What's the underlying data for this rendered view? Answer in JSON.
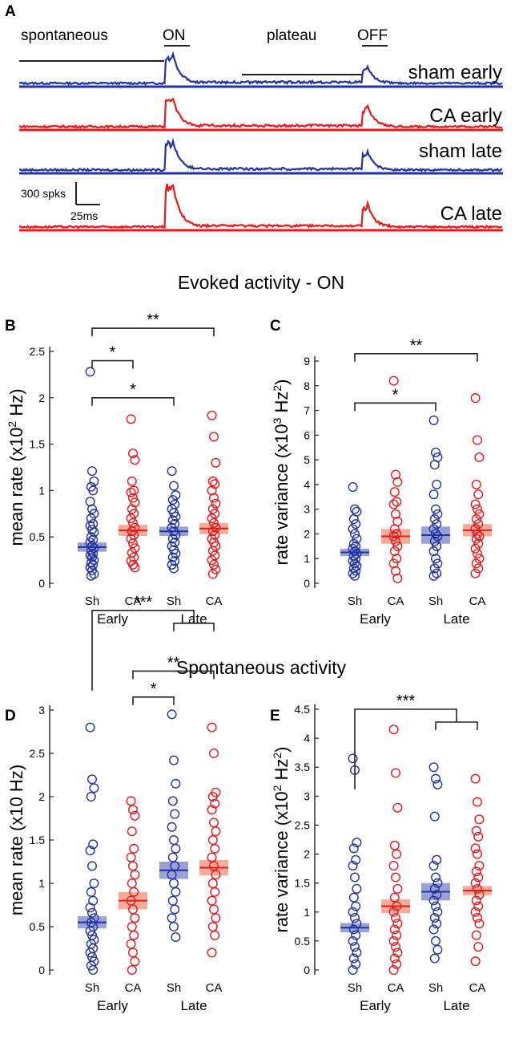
{
  "figure": {
    "panel_a": {
      "letter": "A",
      "period_labels": {
        "spontaneous": "spontaneous",
        "on": "ON",
        "plateau": "plateau",
        "off": "OFF"
      },
      "scale_bar": {
        "counts": "300 spks",
        "time": "25ms"
      }
    },
    "section_on": "Evoked activity - ON",
    "section_spont": "Spontaneous activity"
  },
  "colors": {
    "sham": "#2233a0",
    "ca": "#e8191c",
    "sham_band": "#7b82c6",
    "ca_band": "#f0907a",
    "axis": "#222222"
  },
  "chart_data": [
    {
      "panel": "A",
      "type": "line",
      "series": [
        {
          "name": "sham early",
          "color_key": "sham",
          "on_peak": 1.0,
          "off_peak": 0.55
        },
        {
          "name": "CA early",
          "color_key": "ca",
          "on_peak": 0.95,
          "off_peak": 0.75
        },
        {
          "name": "sham late",
          "color_key": "sham",
          "on_peak": 1.0,
          "off_peak": 0.65
        },
        {
          "name": "CA late",
          "color_key": "ca",
          "on_peak": 1.45,
          "off_peak": 0.8
        }
      ]
    },
    {
      "panel": "B",
      "type": "scatter",
      "ylabel": "mean rate (x10^2 Hz)",
      "ylabel_parts": {
        "pre": "mean rate (x10",
        "sup": "2",
        "post": " Hz)"
      },
      "ylim": [
        0,
        2.5
      ],
      "yticks": [
        0,
        0.5,
        1,
        1.5,
        2,
        2.5
      ],
      "categories": [
        "Sh",
        "CA",
        "Sh",
        "CA"
      ],
      "groups": [
        "Early",
        "Late"
      ],
      "means": [
        0.39,
        0.57,
        0.56,
        0.59
      ],
      "sem": [
        0.05,
        0.06,
        0.05,
        0.06
      ],
      "points": [
        [
          2.28,
          1.21,
          1.1,
          1.04,
          1.0,
          0.88,
          0.8,
          0.75,
          0.7,
          0.64,
          0.62,
          0.58,
          0.55,
          0.5,
          0.47,
          0.44,
          0.4,
          0.38,
          0.35,
          0.32,
          0.3,
          0.28,
          0.25,
          0.22,
          0.2,
          0.17,
          0.14,
          0.1,
          0.08
        ],
        [
          1.77,
          1.4,
          1.33,
          1.1,
          1.0,
          0.98,
          0.92,
          0.87,
          0.8,
          0.75,
          0.7,
          0.65,
          0.6,
          0.56,
          0.52,
          0.48,
          0.43,
          0.38,
          0.33,
          0.28,
          0.24,
          0.2,
          0.17
        ],
        [
          1.21,
          1.05,
          0.95,
          0.9,
          0.85,
          0.8,
          0.76,
          0.72,
          0.68,
          0.64,
          0.6,
          0.56,
          0.52,
          0.48,
          0.44,
          0.4,
          0.36,
          0.32,
          0.28,
          0.24,
          0.2,
          0.16
        ],
        [
          1.81,
          1.58,
          1.3,
          1.1,
          1.07,
          1.0,
          0.92,
          0.86,
          0.8,
          0.75,
          0.7,
          0.65,
          0.6,
          0.56,
          0.52,
          0.48,
          0.44,
          0.4,
          0.35,
          0.3,
          0.25,
          0.2,
          0.15,
          0.1
        ]
      ],
      "significance": [
        {
          "label": "*",
          "from": 0,
          "to": 1,
          "y": 2.4
        },
        {
          "label": "*",
          "from": 0,
          "to": 2,
          "y": 2.0
        },
        {
          "label": "**",
          "from": 0,
          "to": 3,
          "y": 2.75
        }
      ]
    },
    {
      "panel": "C",
      "type": "scatter",
      "ylabel": "rate variance (x10^3 Hz^2)",
      "ylabel_parts": {
        "pre": "rate variance (x10",
        "sup": "3",
        "mid": " Hz",
        "sup2": "2",
        "post": ")"
      },
      "ylim": [
        0,
        9
      ],
      "yticks": [
        0,
        1,
        2,
        3,
        4,
        5,
        6,
        7,
        8,
        9
      ],
      "categories": [
        "Sh",
        "CA",
        "Sh",
        "CA"
      ],
      "groups": [
        "Early",
        "Late"
      ],
      "means": [
        1.25,
        1.9,
        1.95,
        2.15
      ],
      "sem": [
        0.15,
        0.3,
        0.35,
        0.25
      ],
      "points": [
        [
          3.9,
          3.0,
          2.9,
          2.6,
          2.4,
          2.2,
          2.0,
          1.8,
          1.6,
          1.5,
          1.4,
          1.3,
          1.2,
          1.1,
          1.0,
          0.9,
          0.8,
          0.7,
          0.6,
          0.5,
          0.4,
          0.3
        ],
        [
          8.2,
          4.4,
          4.1,
          3.7,
          3.3,
          3.2,
          2.8,
          2.5,
          2.2,
          2.0,
          1.9,
          1.7,
          1.5,
          1.3,
          1.0,
          0.8,
          0.5,
          0.2
        ],
        [
          6.6,
          5.3,
          5.1,
          4.8,
          4.0,
          3.6,
          3.0,
          2.8,
          2.6,
          2.4,
          2.2,
          2.0,
          1.9,
          1.7,
          1.5,
          1.3,
          1.0,
          0.8,
          0.6,
          0.4,
          0.3
        ],
        [
          7.5,
          5.8,
          5.1,
          4.0,
          3.6,
          3.2,
          3.0,
          2.8,
          2.6,
          2.4,
          2.2,
          2.0,
          1.9,
          1.8,
          1.6,
          1.4,
          1.2,
          1.0,
          0.8,
          0.6,
          0.4
        ]
      ],
      "significance": [
        {
          "label": "*",
          "from": 0,
          "to": 2,
          "y": 7.3
        },
        {
          "label": "**",
          "from": 0,
          "to": 3,
          "y": 9.3
        }
      ]
    },
    {
      "panel": "D",
      "type": "scatter",
      "ylabel": "mean rate (x10 Hz)",
      "ylabel_parts": {
        "pre": "mean rate (x10 Hz)"
      },
      "ylim": [
        0,
        3
      ],
      "yticks": [
        0,
        0.5,
        1,
        1.5,
        2,
        2.5,
        3
      ],
      "categories": [
        "Sh",
        "CA",
        "Sh",
        "CA"
      ],
      "groups": [
        "Early",
        "Late"
      ],
      "means": [
        0.55,
        0.8,
        1.15,
        1.18
      ],
      "sem": [
        0.07,
        0.1,
        0.1,
        0.09
      ],
      "points": [
        [
          2.8,
          2.2,
          2.1,
          2.0,
          1.45,
          1.38,
          1.2,
          1.0,
          0.9,
          0.8,
          0.72,
          0.66,
          0.6,
          0.55,
          0.5,
          0.45,
          0.4,
          0.35,
          0.3,
          0.25,
          0.2,
          0.15,
          0.1,
          0.05,
          0.0
        ],
        [
          1.95,
          1.85,
          1.78,
          1.6,
          1.4,
          1.3,
          1.2,
          1.1,
          1.0,
          0.9,
          0.8,
          0.7,
          0.6,
          0.5,
          0.4,
          0.3,
          0.2,
          0.1,
          0.0
        ],
        [
          2.95,
          2.42,
          2.15,
          1.95,
          1.8,
          1.65,
          1.5,
          1.4,
          1.3,
          1.2,
          1.1,
          1.0,
          0.9,
          0.8,
          0.7,
          0.6,
          0.5,
          0.38
        ],
        [
          2.8,
          2.5,
          2.05,
          2.0,
          1.92,
          1.85,
          1.7,
          1.6,
          1.5,
          1.4,
          1.3,
          1.2,
          1.1,
          1.0,
          0.9,
          0.8,
          0.7,
          0.6,
          0.5,
          0.4,
          0.2
        ]
      ],
      "significance": [
        {
          "label": "*",
          "from": 1,
          "to": 2,
          "y": 3.15
        },
        {
          "label": "**",
          "from": 1,
          "to": 3,
          "y": 3.45
        },
        {
          "label": "***",
          "from": 0,
          "to": "2-3",
          "y": 4.15
        }
      ]
    },
    {
      "panel": "E",
      "type": "scatter",
      "ylabel": "rate variance (x10^2 Hz^2)",
      "ylabel_parts": {
        "pre": "rate variance (x10",
        "sup": "2",
        "mid": " Hz",
        "sup2": "2",
        "post": ")"
      },
      "ylim": [
        0,
        4.5
      ],
      "yticks": [
        0,
        0.5,
        1,
        1.5,
        2,
        2.5,
        3,
        3.5,
        4,
        4.5
      ],
      "categories": [
        "Sh",
        "CA",
        "Sh",
        "CA"
      ],
      "groups": [
        "Early",
        "Late"
      ],
      "means": [
        0.73,
        1.1,
        1.35,
        1.37
      ],
      "sem": [
        0.08,
        0.12,
        0.15,
        0.08
      ],
      "points": [
        [
          3.65,
          3.45,
          2.2,
          2.1,
          1.9,
          1.8,
          1.6,
          1.4,
          1.25,
          1.1,
          1.0,
          0.9,
          0.8,
          0.7,
          0.6,
          0.5,
          0.4,
          0.3,
          0.2,
          0.1,
          0.0
        ],
        [
          4.15,
          3.4,
          2.8,
          2.15,
          2.0,
          1.8,
          1.6,
          1.4,
          1.25,
          1.1,
          1.0,
          0.9,
          0.8,
          0.7,
          0.6,
          0.5,
          0.4,
          0.3,
          0.2,
          0.1,
          0.0
        ],
        [
          3.5,
          3.3,
          3.2,
          2.65,
          1.9,
          1.8,
          1.6,
          1.5,
          1.4,
          1.3,
          1.2,
          1.1,
          1.0,
          0.9,
          0.8,
          0.7,
          0.5,
          0.35,
          0.2
        ],
        [
          3.3,
          2.9,
          2.6,
          2.4,
          2.3,
          2.1,
          2.0,
          1.8,
          1.7,
          1.6,
          1.5,
          1.4,
          1.3,
          1.2,
          1.1,
          1.0,
          0.9,
          0.8,
          0.6,
          0.4,
          0.15
        ]
      ],
      "significance": [
        {
          "label": "***",
          "from": 0,
          "to": "2-3",
          "y": 4.5
        }
      ]
    }
  ]
}
